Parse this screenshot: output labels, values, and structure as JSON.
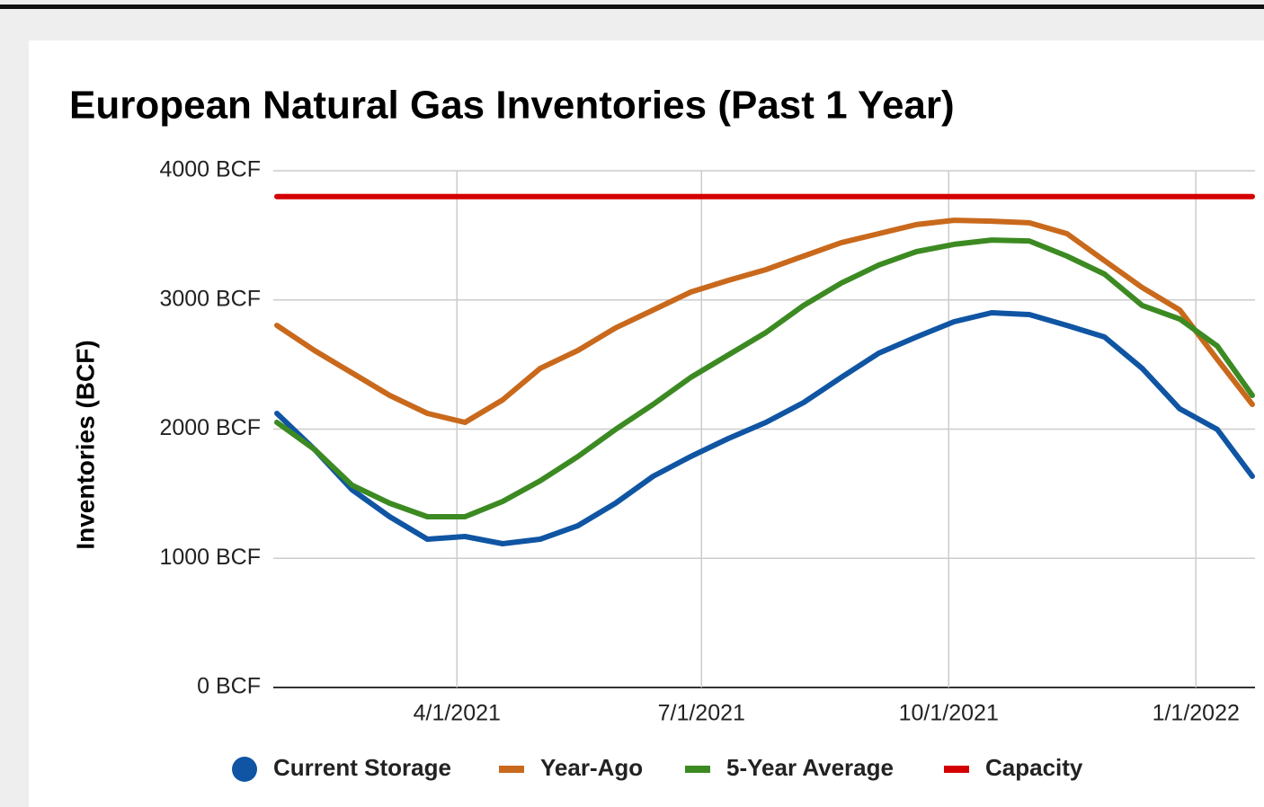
{
  "chart_data": {
    "type": "line",
    "title": "European Natural Gas Inventories (Past 1 Year)",
    "y_label": "Inventories (BCF)",
    "x": [
      "1/24/2021",
      "2/7/2021",
      "2/21/2021",
      "3/7/2021",
      "3/21/2021",
      "4/4/2021",
      "4/18/2021",
      "5/2/2021",
      "5/16/2021",
      "5/30/2021",
      "6/13/2021",
      "6/27/2021",
      "7/11/2021",
      "7/25/2021",
      "8/8/2021",
      "8/22/2021",
      "9/5/2021",
      "9/19/2021",
      "10/3/2021",
      "10/17/2021",
      "10/31/2021",
      "11/14/2021",
      "11/28/2021",
      "12/12/2021",
      "12/26/2021",
      "1/9/2022",
      "1/22/2022"
    ],
    "series": [
      {
        "name": "Current Storage",
        "color": "#0f55a3",
        "values": [
          2122,
          1843,
          1530,
          1322,
          1148,
          1169,
          1113,
          1148,
          1252,
          1426,
          1635,
          1788,
          1927,
          2052,
          2205,
          2400,
          2588,
          2713,
          2831,
          2901,
          2887,
          2803,
          2713,
          2470,
          2157,
          1997,
          1635
        ]
      },
      {
        "name": "Year-Ago",
        "color": "#c9691c",
        "values": [
          2803,
          2609,
          2435,
          2261,
          2122,
          2052,
          2226,
          2470,
          2609,
          2783,
          2922,
          3061,
          3151,
          3235,
          3339,
          3443,
          3513,
          3583,
          3617,
          3610,
          3597,
          3513,
          3304,
          3096,
          2922,
          2539,
          2191
        ]
      },
      {
        "name": "5-Year Average",
        "color": "#3c8a22",
        "values": [
          2052,
          1843,
          1565,
          1426,
          1322,
          1322,
          1440,
          1600,
          1788,
          1997,
          2191,
          2400,
          2574,
          2748,
          2957,
          3130,
          3270,
          3374,
          3430,
          3464,
          3457,
          3339,
          3200,
          2957,
          2852,
          2643,
          2261
        ]
      },
      {
        "name": "Capacity",
        "color": "#d40000",
        "values": [
          3800,
          3800,
          3800,
          3800,
          3800,
          3800,
          3800,
          3800,
          3800,
          3800,
          3800,
          3800,
          3800,
          3800,
          3800,
          3800,
          3800,
          3800,
          3800,
          3800,
          3800,
          3800,
          3800,
          3800,
          3800,
          3800,
          3800
        ]
      }
    ],
    "xlim": [
      "1/24/2021",
      "1/22/2022"
    ],
    "xticks": [
      "4/1/2021",
      "7/1/2021",
      "10/1/2021",
      "1/1/2022"
    ],
    "ylim": [
      0,
      4000
    ],
    "yticks": [
      {
        "value": 0,
        "label": "0 BCF"
      },
      {
        "value": 1000,
        "label": "1000 BCF"
      },
      {
        "value": 2000,
        "label": "2000 BCF"
      },
      {
        "value": 3000,
        "label": "3000 BCF"
      },
      {
        "value": 4000,
        "label": "4000 BCF"
      }
    ],
    "grid": true,
    "legend_position": "bottom"
  }
}
